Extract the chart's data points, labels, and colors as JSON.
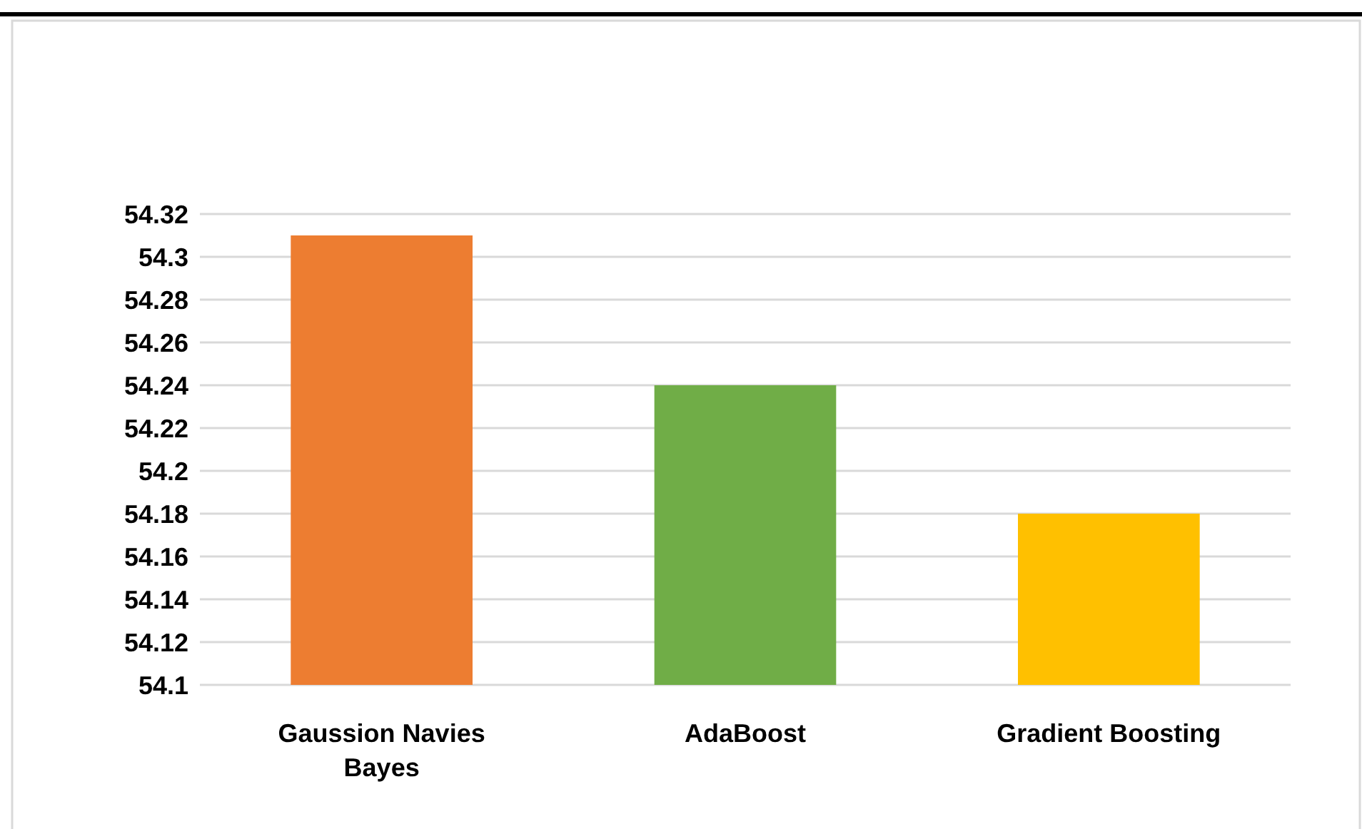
{
  "chart_data": {
    "type": "bar",
    "categories": [
      "Gaussion Navies Bayes",
      "AdaBoost",
      "Gradient Boosting"
    ],
    "values": [
      54.31,
      54.24,
      54.18
    ],
    "colors": [
      "#ed7d31",
      "#70ad47",
      "#ffc000"
    ],
    "ylim": [
      54.1,
      54.32
    ],
    "yticks": [
      54.1,
      54.12,
      54.14,
      54.16,
      54.18,
      54.2,
      54.22,
      54.24,
      54.26,
      54.28,
      54.3,
      54.32
    ],
    "grid": "y"
  }
}
